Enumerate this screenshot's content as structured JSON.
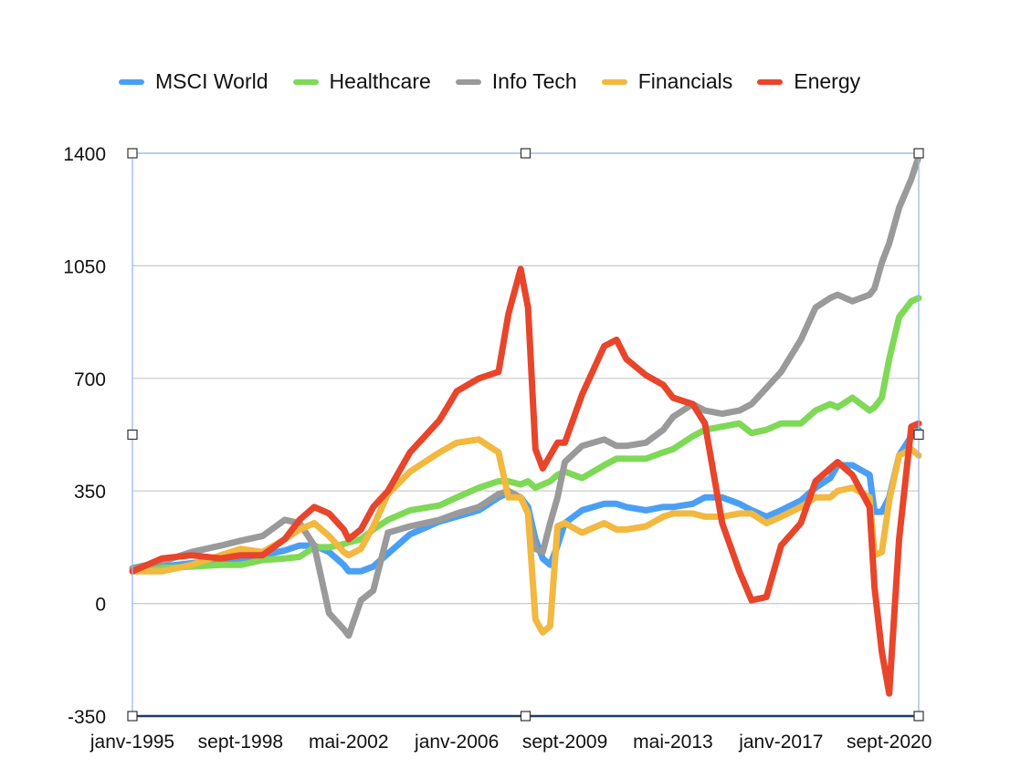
{
  "chart_data": {
    "type": "line",
    "title": "",
    "xlabel": "",
    "ylabel": "",
    "ylim": [
      -350,
      1400
    ],
    "yticks": [
      -350,
      0,
      350,
      700,
      1050,
      1400
    ],
    "xtick_labels": [
      "janv-1995",
      "sept-1998",
      "mai-2002",
      "janv-2006",
      "sept-2009",
      "mai-2013",
      "janv-2017",
      "sept-2020"
    ],
    "x_range": [
      "janv-1995",
      "sept-2021"
    ],
    "grid": "horizontal",
    "legend_position": "top",
    "x": [
      "1995-01",
      "1996-01",
      "1997-01",
      "1998-01",
      "1998-09",
      "1999-06",
      "2000-03",
      "2000-09",
      "2001-03",
      "2001-09",
      "2002-03",
      "2002-05",
      "2002-10",
      "2003-03",
      "2003-09",
      "2004-06",
      "2005-06",
      "2006-01",
      "2006-10",
      "2007-06",
      "2007-10",
      "2008-03",
      "2008-06",
      "2008-09",
      "2008-12",
      "2009-03",
      "2009-06",
      "2009-09",
      "2010-04",
      "2011-01",
      "2011-06",
      "2011-10",
      "2012-06",
      "2013-01",
      "2013-05",
      "2014-01",
      "2014-06",
      "2015-01",
      "2015-08",
      "2016-01",
      "2016-07",
      "2017-01",
      "2017-09",
      "2018-03",
      "2018-09",
      "2018-12",
      "2019-06",
      "2020-01",
      "2020-03",
      "2020-06",
      "2020-09",
      "2021-01",
      "2021-06",
      "2021-09"
    ],
    "series": [
      {
        "name": "MSCI World",
        "color": "#4a9ff5",
        "values": [
          100,
          115,
          125,
          135,
          140,
          150,
          165,
          180,
          180,
          160,
          120,
          100,
          100,
          115,
          155,
          215,
          255,
          270,
          290,
          330,
          345,
          330,
          300,
          200,
          140,
          120,
          180,
          250,
          290,
          310,
          310,
          300,
          290,
          300,
          300,
          310,
          330,
          330,
          310,
          290,
          270,
          290,
          320,
          360,
          390,
          430,
          430,
          400,
          285,
          285,
          330,
          460,
          520,
          540
        ]
      },
      {
        "name": "Healthcare",
        "color": "#7ed957",
        "values": [
          100,
          110,
          115,
          120,
          120,
          135,
          140,
          145,
          175,
          175,
          185,
          190,
          200,
          230,
          260,
          290,
          305,
          330,
          360,
          380,
          380,
          370,
          380,
          360,
          370,
          380,
          400,
          410,
          390,
          430,
          450,
          450,
          450,
          470,
          480,
          520,
          540,
          550,
          560,
          530,
          540,
          560,
          560,
          600,
          620,
          610,
          640,
          600,
          610,
          640,
          760,
          890,
          940,
          950
        ]
      },
      {
        "name": "Info Tech",
        "color": "#9a9a9a",
        "values": [
          110,
          130,
          160,
          180,
          195,
          210,
          260,
          250,
          180,
          -30,
          -80,
          -100,
          10,
          40,
          220,
          240,
          260,
          280,
          300,
          340,
          350,
          330,
          280,
          170,
          160,
          250,
          330,
          440,
          490,
          510,
          490,
          490,
          500,
          540,
          580,
          620,
          600,
          590,
          600,
          620,
          670,
          720,
          820,
          920,
          950,
          960,
          940,
          960,
          980,
          1060,
          1120,
          1230,
          1320,
          1390
        ]
      },
      {
        "name": "Financials",
        "color": "#f2b83f",
        "values": [
          100,
          100,
          120,
          150,
          170,
          160,
          200,
          230,
          250,
          210,
          160,
          150,
          170,
          240,
          340,
          410,
          470,
          500,
          510,
          470,
          330,
          330,
          280,
          -50,
          -90,
          -70,
          240,
          250,
          220,
          250,
          230,
          230,
          240,
          270,
          280,
          280,
          270,
          270,
          280,
          280,
          250,
          270,
          300,
          330,
          330,
          350,
          360,
          330,
          150,
          160,
          320,
          460,
          480,
          460
        ]
      },
      {
        "name": "Energy",
        "color": "#e8452b",
        "values": [
          100,
          140,
          150,
          140,
          150,
          150,
          200,
          260,
          300,
          280,
          230,
          200,
          230,
          300,
          350,
          470,
          570,
          660,
          700,
          720,
          900,
          1040,
          920,
          480,
          420,
          460,
          500,
          500,
          650,
          800,
          820,
          760,
          710,
          680,
          640,
          620,
          560,
          250,
          100,
          10,
          20,
          180,
          250,
          380,
          420,
          440,
          400,
          300,
          50,
          -150,
          -280,
          200,
          550,
          560
        ]
      }
    ]
  }
}
